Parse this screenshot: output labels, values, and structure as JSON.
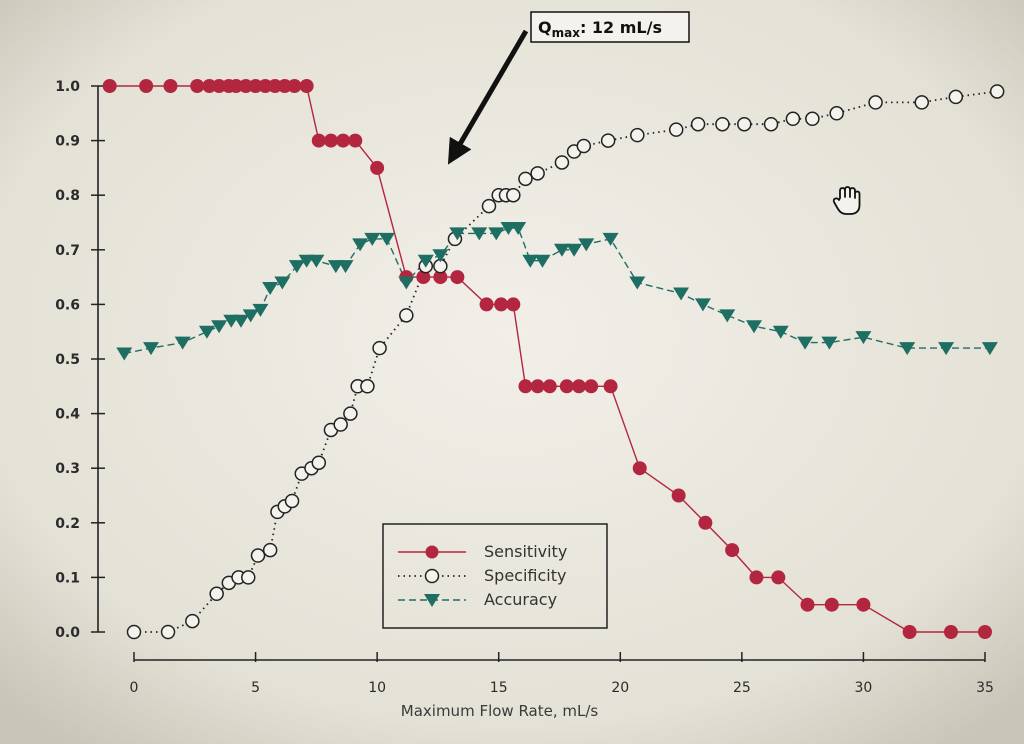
{
  "chart_data": {
    "type": "line",
    "title": "",
    "xlabel": "Maximum Flow Rate, mL/s",
    "ylabel": "",
    "xlim": [
      0,
      35
    ],
    "ylim": [
      0,
      1.0
    ],
    "xticks": [
      "0",
      "5",
      "10",
      "15",
      "20",
      "25",
      "30",
      "35"
    ],
    "yticks": [
      "0.0",
      "0.1",
      "0.2",
      "0.3",
      "0.4",
      "0.5",
      "0.6",
      "0.7",
      "0.8",
      "0.9",
      "1.0"
    ],
    "grid": false,
    "legend_position": "bottom-center",
    "annotation": {
      "text_prefix": "Q",
      "text_sub": "max",
      "text_suffix": ": 12 mL/s",
      "x": 12
    },
    "series": [
      {
        "name": "Sensitivity",
        "color": "#b3263f",
        "marker": "filled-circle",
        "line": "solid",
        "points": [
          [
            -1,
            1.0
          ],
          [
            0.5,
            1.0
          ],
          [
            1.5,
            1.0
          ],
          [
            2.6,
            1.0
          ],
          [
            3.1,
            1.0
          ],
          [
            3.5,
            1.0
          ],
          [
            3.9,
            1.0
          ],
          [
            4.2,
            1.0
          ],
          [
            4.6,
            1.0
          ],
          [
            5.0,
            1.0
          ],
          [
            5.4,
            1.0
          ],
          [
            5.8,
            1.0
          ],
          [
            6.2,
            1.0
          ],
          [
            6.6,
            1.0
          ],
          [
            7.1,
            1.0
          ],
          [
            7.6,
            0.9
          ],
          [
            8.1,
            0.9
          ],
          [
            8.6,
            0.9
          ],
          [
            9.1,
            0.9
          ],
          [
            10.0,
            0.85
          ],
          [
            11.2,
            0.65
          ],
          [
            11.9,
            0.65
          ],
          [
            12.6,
            0.65
          ],
          [
            13.3,
            0.65
          ],
          [
            14.5,
            0.6
          ],
          [
            15.1,
            0.6
          ],
          [
            15.6,
            0.6
          ],
          [
            16.1,
            0.45
          ],
          [
            16.6,
            0.45
          ],
          [
            17.1,
            0.45
          ],
          [
            17.8,
            0.45
          ],
          [
            18.3,
            0.45
          ],
          [
            18.8,
            0.45
          ],
          [
            19.6,
            0.45
          ],
          [
            20.8,
            0.3
          ],
          [
            22.4,
            0.25
          ],
          [
            23.5,
            0.2
          ],
          [
            24.6,
            0.15
          ],
          [
            25.6,
            0.1
          ],
          [
            26.5,
            0.1
          ],
          [
            27.7,
            0.05
          ],
          [
            28.7,
            0.05
          ],
          [
            30.0,
            0.05
          ],
          [
            31.9,
            0.0
          ],
          [
            33.6,
            0.0
          ],
          [
            35.0,
            0.0
          ]
        ]
      },
      {
        "name": "Specificity",
        "color": "#222222",
        "marker": "open-circle",
        "line": "dotted",
        "points": [
          [
            0.0,
            0.0
          ],
          [
            1.4,
            0.0
          ],
          [
            2.4,
            0.02
          ],
          [
            3.4,
            0.07
          ],
          [
            3.9,
            0.09
          ],
          [
            4.3,
            0.1
          ],
          [
            4.7,
            0.1
          ],
          [
            5.1,
            0.14
          ],
          [
            5.6,
            0.15
          ],
          [
            5.9,
            0.22
          ],
          [
            6.2,
            0.23
          ],
          [
            6.5,
            0.24
          ],
          [
            6.9,
            0.29
          ],
          [
            7.3,
            0.3
          ],
          [
            7.6,
            0.31
          ],
          [
            8.1,
            0.37
          ],
          [
            8.5,
            0.38
          ],
          [
            8.9,
            0.4
          ],
          [
            9.2,
            0.45
          ],
          [
            9.6,
            0.45
          ],
          [
            10.1,
            0.52
          ],
          [
            11.2,
            0.58
          ],
          [
            12.0,
            0.67
          ],
          [
            12.6,
            0.67
          ],
          [
            13.2,
            0.72
          ],
          [
            14.6,
            0.78
          ],
          [
            15.0,
            0.8
          ],
          [
            15.3,
            0.8
          ],
          [
            15.6,
            0.8
          ],
          [
            16.1,
            0.83
          ],
          [
            16.6,
            0.84
          ],
          [
            17.6,
            0.86
          ],
          [
            18.1,
            0.88
          ],
          [
            18.5,
            0.89
          ],
          [
            19.5,
            0.9
          ],
          [
            20.7,
            0.91
          ],
          [
            22.3,
            0.92
          ],
          [
            23.2,
            0.93
          ],
          [
            24.2,
            0.93
          ],
          [
            25.1,
            0.93
          ],
          [
            26.2,
            0.93
          ],
          [
            27.1,
            0.94
          ],
          [
            27.9,
            0.94
          ],
          [
            28.9,
            0.95
          ],
          [
            30.5,
            0.97
          ],
          [
            32.4,
            0.97
          ],
          [
            33.8,
            0.98
          ],
          [
            35.5,
            0.99
          ]
        ]
      },
      {
        "name": "Accuracy",
        "color": "#1f6e63",
        "marker": "filled-triangle-down",
        "line": "dashed",
        "points": [
          [
            -0.4,
            0.51
          ],
          [
            0.7,
            0.52
          ],
          [
            2.0,
            0.53
          ],
          [
            3.0,
            0.55
          ],
          [
            3.5,
            0.56
          ],
          [
            4.0,
            0.57
          ],
          [
            4.4,
            0.57
          ],
          [
            4.8,
            0.58
          ],
          [
            5.2,
            0.59
          ],
          [
            5.6,
            0.63
          ],
          [
            6.1,
            0.64
          ],
          [
            6.7,
            0.67
          ],
          [
            7.1,
            0.68
          ],
          [
            7.5,
            0.68
          ],
          [
            8.3,
            0.67
          ],
          [
            8.7,
            0.67
          ],
          [
            9.3,
            0.71
          ],
          [
            9.8,
            0.72
          ],
          [
            10.4,
            0.72
          ],
          [
            11.2,
            0.64
          ],
          [
            12.0,
            0.68
          ],
          [
            12.6,
            0.69
          ],
          [
            13.3,
            0.73
          ],
          [
            14.2,
            0.73
          ],
          [
            14.9,
            0.73
          ],
          [
            15.4,
            0.74
          ],
          [
            15.8,
            0.74
          ],
          [
            16.3,
            0.68
          ],
          [
            16.8,
            0.68
          ],
          [
            17.6,
            0.7
          ],
          [
            18.1,
            0.7
          ],
          [
            18.6,
            0.71
          ],
          [
            19.6,
            0.72
          ],
          [
            20.7,
            0.64
          ],
          [
            22.5,
            0.62
          ],
          [
            23.4,
            0.6
          ],
          [
            24.4,
            0.58
          ],
          [
            25.5,
            0.56
          ],
          [
            26.6,
            0.55
          ],
          [
            27.6,
            0.53
          ],
          [
            28.6,
            0.53
          ],
          [
            30.0,
            0.54
          ],
          [
            31.8,
            0.52
          ],
          [
            33.4,
            0.52
          ],
          [
            35.2,
            0.52
          ]
        ]
      }
    ]
  }
}
